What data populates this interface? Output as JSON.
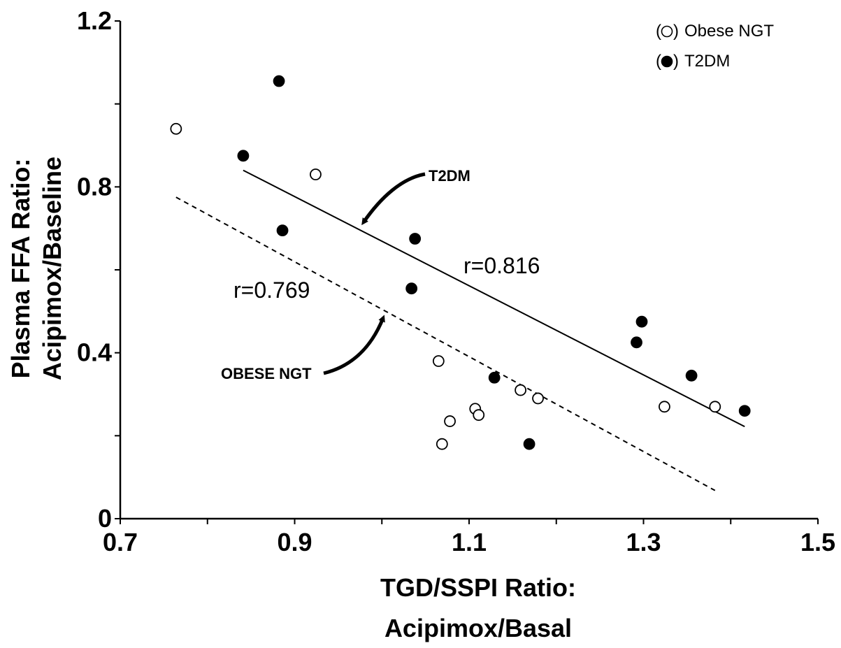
{
  "chart_data": {
    "type": "scatter",
    "xlabel": [
      "TGD/SSPI Ratio:",
      "Acipimox/Basal"
    ],
    "ylabel": [
      "Plasma FFA Ratio:",
      "Acipimox/Baseline"
    ],
    "xlim": [
      0.7,
      1.5
    ],
    "ylim": [
      0,
      1.2
    ],
    "xticks": [
      0.7,
      0.9,
      1.1,
      1.3,
      1.5
    ],
    "xtick_labels": [
      "0.7",
      "0.9",
      "1.1",
      "1.3",
      "1.5"
    ],
    "yticks": [
      0,
      0.4,
      0.8,
      1.2
    ],
    "ytick_labels": [
      "0",
      "0.4",
      "0.8",
      "1.2"
    ],
    "grid": false,
    "legend_position": "top-right",
    "legend": [
      {
        "label": "Obese NGT",
        "marker": "open-circle",
        "prefix": "(",
        "suffix": ")"
      },
      {
        "label": "T2DM",
        "marker": "filled-circle",
        "prefix": "(",
        "suffix": ")"
      }
    ],
    "series": [
      {
        "name": "Obese NGT",
        "marker": "open",
        "points": [
          [
            0.764,
            0.94
          ],
          [
            0.924,
            0.83
          ],
          [
            1.065,
            0.38
          ],
          [
            1.069,
            0.18
          ],
          [
            1.078,
            0.235
          ],
          [
            1.107,
            0.265
          ],
          [
            1.111,
            0.25
          ],
          [
            1.159,
            0.31
          ],
          [
            1.179,
            0.29
          ],
          [
            1.324,
            0.27
          ],
          [
            1.382,
            0.27
          ]
        ],
        "fit": {
          "line_style": "dashed",
          "x": [
            0.764,
            1.382
          ],
          "y": [
            0.775,
            0.068
          ],
          "label": "r=0.769"
        }
      },
      {
        "name": "T2DM",
        "marker": "filled",
        "points": [
          [
            0.882,
            1.055
          ],
          [
            0.841,
            0.875
          ],
          [
            0.886,
            0.695
          ],
          [
            1.034,
            0.555
          ],
          [
            1.038,
            0.675
          ],
          [
            1.129,
            0.34
          ],
          [
            1.169,
            0.18
          ],
          [
            1.292,
            0.425
          ],
          [
            1.298,
            0.475
          ],
          [
            1.355,
            0.345
          ],
          [
            1.416,
            0.26
          ]
        ],
        "fit": {
          "line_style": "solid",
          "x": [
            0.841,
            1.416
          ],
          "y": [
            0.84,
            0.222
          ],
          "label": "r=0.816"
        }
      }
    ],
    "annotations": [
      {
        "text": "T2DM",
        "target": "T2DM fit line"
      },
      {
        "text": "OBESE NGT",
        "target": "Obese NGT fit line"
      }
    ]
  }
}
